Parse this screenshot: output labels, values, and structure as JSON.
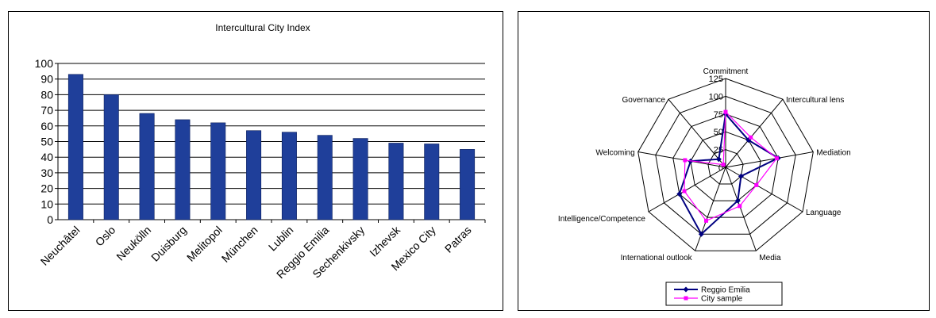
{
  "chart_data": [
    {
      "type": "bar",
      "title": "Intercultural City Index",
      "categories": [
        "Neuchâtel",
        "Oslo",
        "Neukölln",
        "Duisburg",
        "Melitopol",
        "München",
        "Lublin",
        "Reggio Emilia",
        "Sechenkivsky",
        "Izhevsk",
        "Mexico City",
        "Patras"
      ],
      "values": [
        93,
        80,
        68,
        64,
        62,
        57,
        56,
        54,
        52,
        49,
        48.5,
        45
      ],
      "ylim": [
        0,
        100
      ],
      "yticks": [
        "0",
        "10",
        "20",
        "30",
        "40",
        "50",
        "60",
        "70",
        "80",
        "90",
        "100"
      ],
      "grid": true,
      "color": "#1f3f9a"
    },
    {
      "type": "radar",
      "axes": [
        "Commitment",
        "Intercultural lens",
        "Mediation",
        "Language",
        "Media",
        "International outlook",
        "Intelligence/Competence",
        "Welcoming",
        "Governance"
      ],
      "rticks": [
        "0",
        "25",
        "50",
        "75",
        "100",
        "125"
      ],
      "rlim": [
        0,
        125
      ],
      "series": [
        {
          "name": "Reggio Emilia",
          "values": [
            75,
            50,
            75,
            25,
            50,
            100,
            75,
            50,
            15
          ],
          "color": "#000080"
        },
        {
          "name": "City sample",
          "values": [
            78,
            55,
            73,
            50,
            58,
            80,
            67,
            58,
            5
          ],
          "color": "#ff00ff"
        }
      ],
      "legend": "bottom"
    }
  ]
}
